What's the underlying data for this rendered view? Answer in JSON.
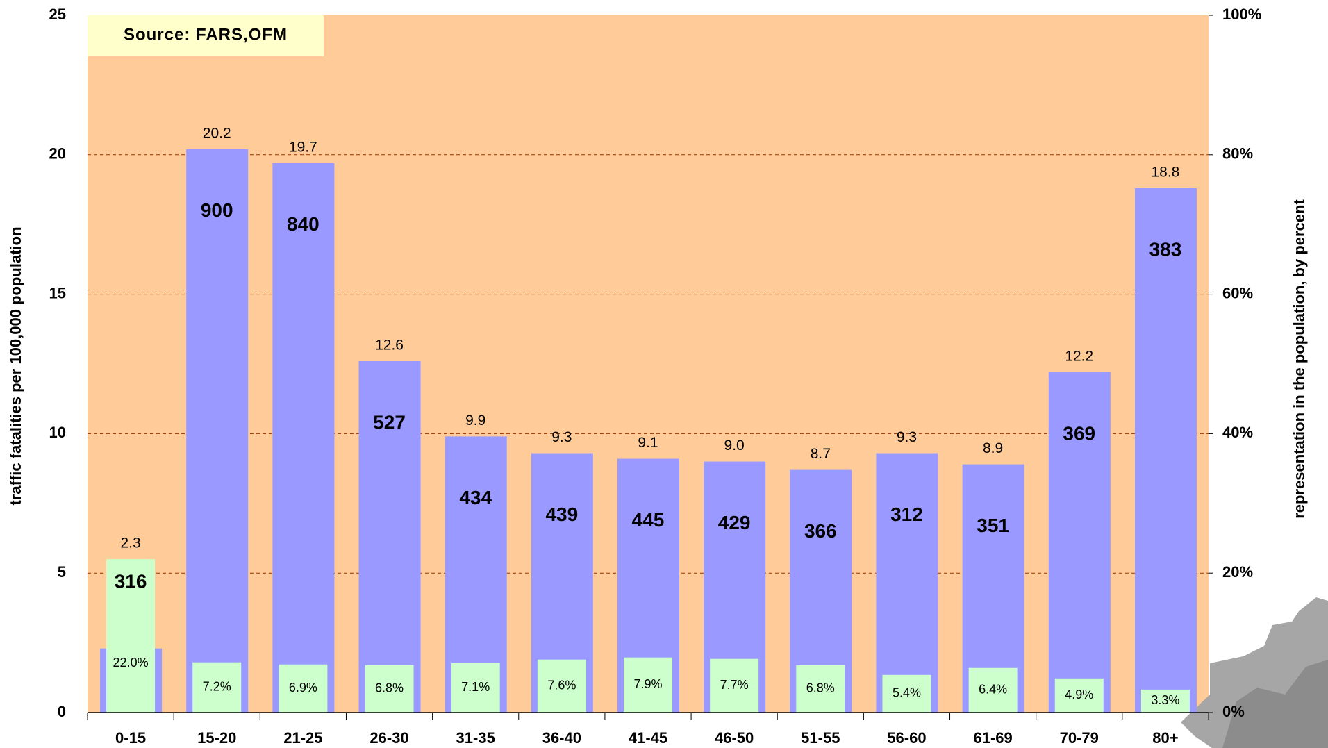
{
  "chart_data": {
    "type": "bar",
    "annotation": "Source: FARS,OFM",
    "y_label": "traffic fatalities per 100,000 population",
    "y2_label": "representation in the population, by percent",
    "categories": [
      "0-15",
      "15-20",
      "21-25",
      "26-30",
      "31-35",
      "36-40",
      "41-45",
      "46-50",
      "51-55",
      "56-60",
      "61-69",
      "70-79",
      "80+"
    ],
    "series": [
      {
        "color": "#9999ff",
        "values": [
          2.3,
          20.2,
          19.7,
          12.6,
          9.9,
          9.3,
          9.1,
          9.0,
          8.7,
          9.3,
          8.9,
          12.2,
          18.8
        ],
        "value_labels": [
          "2.3",
          "20.2",
          "19.7",
          "12.6",
          "9.9",
          "9.3",
          "9.1",
          "9.0",
          "8.7",
          "9.3",
          "8.9",
          "12.2",
          "18.8"
        ],
        "counts": [
          316,
          900,
          840,
          527,
          434,
          439,
          445,
          429,
          366,
          312,
          351,
          369,
          383
        ]
      },
      {
        "color": "#ccffcc",
        "axis": "y2",
        "values": [
          22.0,
          7.2,
          6.9,
          6.8,
          7.1,
          7.6,
          7.9,
          7.7,
          6.8,
          5.4,
          6.4,
          4.9,
          3.3
        ],
        "value_labels": [
          "22.0%",
          "7.2%",
          "6.9%",
          "6.8%",
          "7.1%",
          "7.6%",
          "7.9%",
          "7.7%",
          "6.8%",
          "5.4%",
          "6.4%",
          "4.9%",
          "3.3%"
        ]
      }
    ],
    "ylim": [
      0,
      25
    ],
    "yticks": [
      0,
      5,
      10,
      15,
      20,
      25
    ],
    "y2lim": [
      0,
      100
    ],
    "y2ticks": [
      {
        "value": 0,
        "label": "0%"
      },
      {
        "value": 20,
        "label": "20%"
      },
      {
        "value": 40,
        "label": "40%"
      },
      {
        "value": 60,
        "label": "60%"
      },
      {
        "value": 80,
        "label": "80%"
      },
      {
        "value": 100,
        "label": "100%"
      }
    ],
    "grid": true,
    "plot_background": "#ffcc99"
  }
}
